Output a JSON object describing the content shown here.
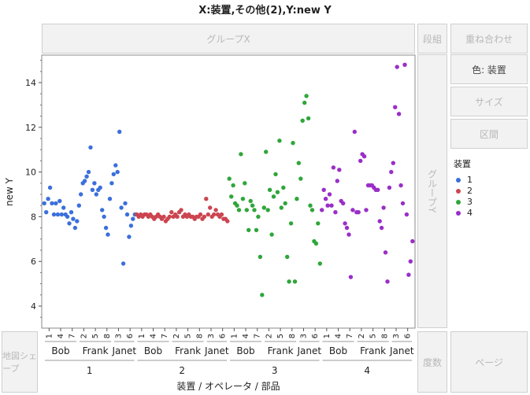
{
  "title": "X:装置,その他(2),Y:new Y",
  "zones": {
    "group_x": "グループX",
    "wrap": "段組",
    "overlay": "重ね合わせ",
    "color": "色: 装置",
    "size": "サイズ",
    "interval": "区間",
    "group_y": "グループY",
    "map_shape": "地図シェープ",
    "freq": "度数",
    "page": "ページ"
  },
  "legend": {
    "title": "装置",
    "items": [
      {
        "label": "1",
        "color": "#3b6fdc"
      },
      {
        "label": "2",
        "color": "#cc4550"
      },
      {
        "label": "3",
        "color": "#2fa63a"
      },
      {
        "label": "4",
        "color": "#9a2ec8"
      }
    ]
  },
  "chart_data": {
    "type": "scatter",
    "ylabel": "new Y",
    "xlabel": "装置 / オペレータ / 部品",
    "ylim": [
      3,
      15.5
    ],
    "yticks": [
      4,
      6,
      8,
      10,
      12,
      14
    ],
    "grid": false,
    "groups": [
      "1",
      "2",
      "3",
      "4"
    ],
    "operators": [
      "Bob",
      "Frank",
      "Janet"
    ],
    "parts": [
      "1",
      "4",
      "7",
      "2",
      "5",
      "8",
      "3",
      "6"
    ],
    "colors": [
      "#3b6fdc",
      "#cc4550",
      "#2fa63a",
      "#9a2ec8"
    ],
    "series": [
      {
        "name": "1",
        "values": [
          [
            8.6,
            8.2,
            8.8,
            9.3,
            8.6,
            8.1
          ],
          [
            8.6,
            8.1,
            8.7,
            8.1,
            8.4,
            8.1
          ],
          [
            8.0,
            7.7,
            8.2,
            7.9,
            7.5,
            7.8
          ],
          [
            8.5,
            9.0,
            9.5,
            9.6,
            9.8,
            10.0
          ],
          [
            11.1,
            9.2,
            9.5,
            9.0,
            9.2,
            9.3
          ],
          [
            8.3,
            8.0,
            7.5,
            7.2,
            8.8,
            9.5
          ],
          [
            9.9,
            10.3,
            10.0,
            11.8,
            8.4,
            5.9
          ],
          [
            8.6,
            8.1,
            7.1,
            7.6,
            7.9,
            8.1
          ]
        ]
      },
      {
        "name": "2",
        "values": [
          [
            8.1,
            8.0,
            8.1,
            8.0,
            8.1,
            8.1
          ],
          [
            8.0,
            8.1,
            8.0,
            7.9,
            8.0,
            8.1
          ],
          [
            8.0,
            7.9,
            8.0,
            7.8,
            7.9,
            8.0
          ],
          [
            8.2,
            8.0,
            8.1,
            8.0,
            8.2,
            8.3
          ],
          [
            8.0,
            8.1,
            8.0,
            8.1,
            8.0,
            8.0
          ],
          [
            7.9,
            8.0,
            8.0,
            8.1,
            7.9,
            8.0
          ],
          [
            8.8,
            8.1,
            8.4,
            8.0,
            8.1,
            8.3
          ],
          [
            8.1,
            8.0,
            8.1,
            7.9,
            7.9,
            7.8
          ]
        ]
      },
      {
        "name": "3",
        "values": [
          [
            9.7,
            8.9,
            9.4,
            8.6,
            8.5,
            8.3
          ],
          [
            10.8,
            8.8,
            9.5,
            8.3,
            7.4,
            8.7
          ],
          [
            8.5,
            8.3,
            7.4,
            8.0,
            6.2,
            4.5
          ],
          [
            8.4,
            10.9,
            8.3,
            9.2,
            7.2,
            8.9
          ],
          [
            9.9,
            9.1,
            11.4,
            8.4,
            9.3,
            8.6
          ],
          [
            6.2,
            5.1,
            7.7,
            11.3,
            5.1,
            8.8
          ],
          [
            10.4,
            9.7,
            12.3,
            13.1,
            13.4,
            12.4
          ],
          [
            8.5,
            8.3,
            6.9,
            6.8,
            7.7,
            5.9
          ]
        ]
      },
      {
        "name": "4",
        "values": [
          [
            8.3,
            9.2,
            8.8,
            8.5,
            9.0,
            8.5
          ],
          [
            10.2,
            8.2,
            9.6,
            10.1,
            8.7,
            8.6
          ],
          [
            7.7,
            7.5,
            7.2,
            5.3,
            8.3,
            11.8
          ],
          [
            8.2,
            8.2,
            10.5,
            10.8,
            10.7,
            8.3
          ],
          [
            9.4,
            9.4,
            9.4,
            9.3,
            9.2,
            9.2
          ],
          [
            7.8,
            7.5,
            8.4,
            6.4,
            5.1,
            9.3
          ],
          [
            10.0,
            10.4,
            12.9,
            14.7,
            12.6,
            9.4
          ],
          [
            8.6,
            14.8,
            8.1,
            5.4,
            6.0,
            6.9
          ]
        ]
      }
    ]
  }
}
